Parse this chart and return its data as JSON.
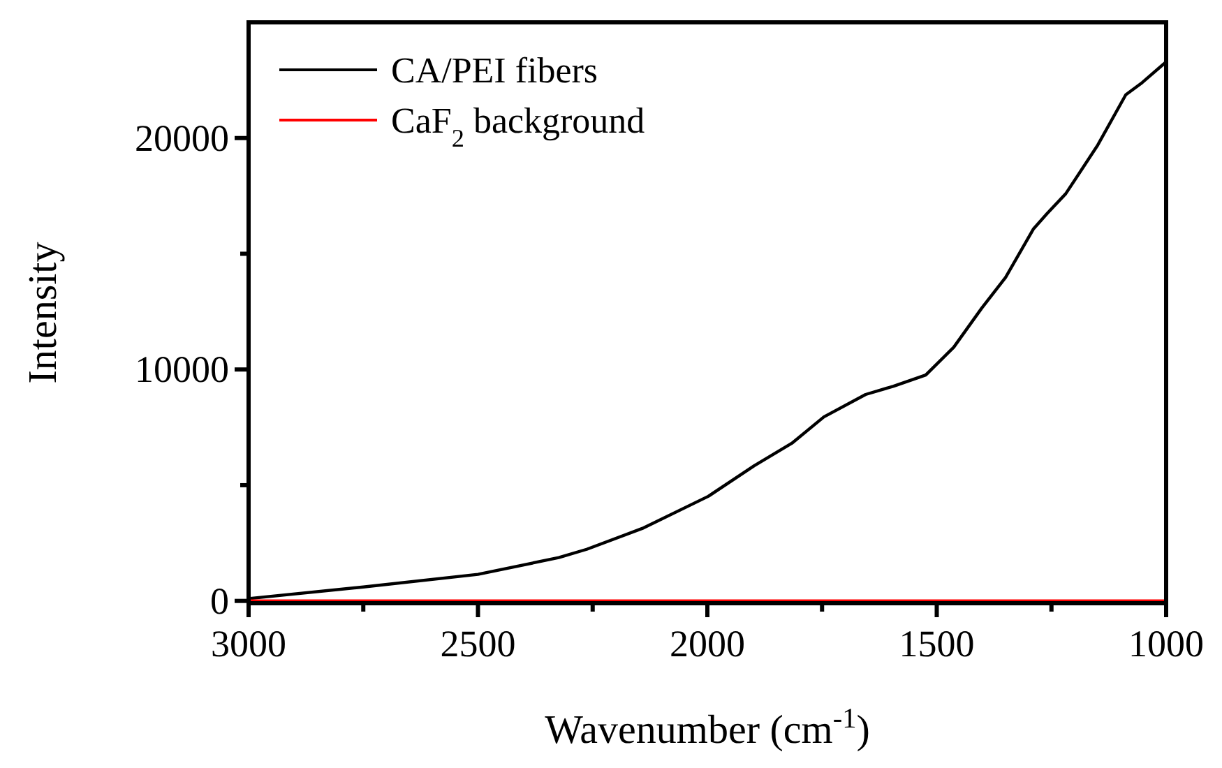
{
  "chart_data": {
    "type": "line",
    "xlabel": "Wavenumber (cm$^{-1}$)",
    "ylabel": "Intensity",
    "xlim": [
      3000,
      1000
    ],
    "xticks": [
      3000,
      {
        "value": 2750,
        "label": null
      },
      2500,
      {
        "value": 2250,
        "label": null
      },
      2000,
      {
        "value": 1750,
        "label": null
      },
      1500,
      {
        "value": 1250,
        "label": null
      },
      1000
    ],
    "ylim": [
      -100,
      25000
    ],
    "yticks": [
      0,
      {
        "value": 5000,
        "label": null
      },
      10000,
      {
        "value": 15000,
        "label": null
      },
      20000
    ],
    "legend": "top left",
    "grid": false,
    "marker": "none",
    "line_style": "solid",
    "series": [
      {
        "name": "CA/PEI fibers",
        "color": "#000000",
        "x": [
          3000,
          2750,
          2500,
          2324,
          2263,
          2142,
          1998,
          1898,
          1816,
          1746,
          1655,
          1594,
          1524,
          1463,
          1402,
          1350,
          1289,
          1259,
          1219,
          1183,
          1149,
          1088,
          1052,
          1006,
          1000
        ],
        "values": [
          100,
          600,
          1150,
          1870,
          2230,
          3130,
          4520,
          5840,
          6810,
          7950,
          8920,
          9280,
          9760,
          10960,
          12650,
          13980,
          16080,
          16750,
          17590,
          18670,
          19700,
          21870,
          22400,
          23190,
          23300
        ]
      },
      {
        "name": "CaF$_{2}$ background",
        "color": "#ff0000",
        "x": [
          3000,
          1000
        ],
        "values": [
          0,
          0
        ]
      }
    ]
  }
}
